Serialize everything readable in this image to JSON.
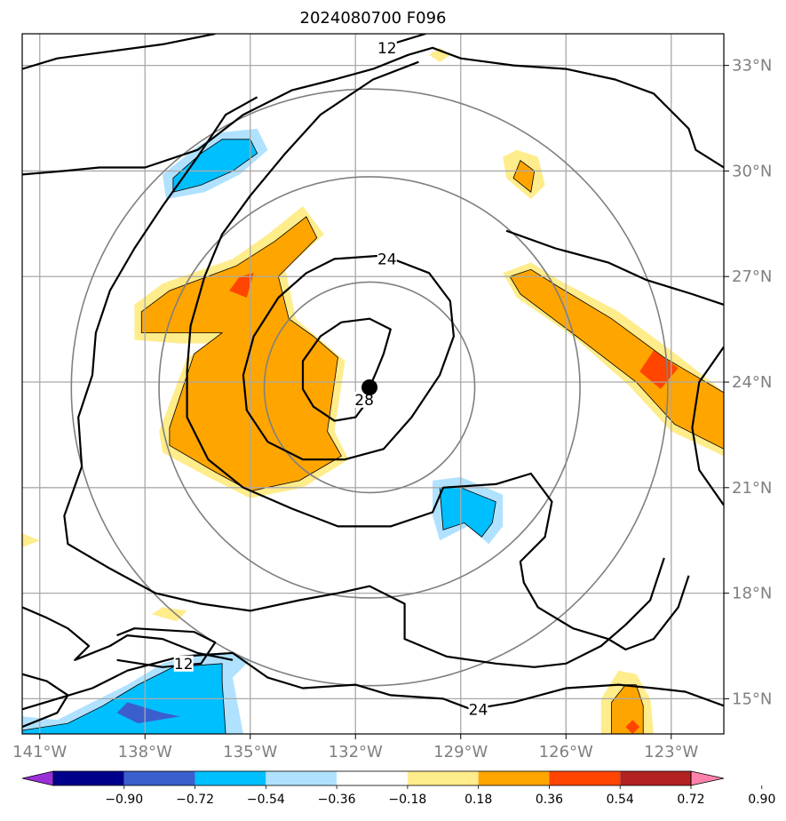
{
  "chart_data": {
    "type": "heatmap",
    "title": "2024080700 F096",
    "xlabel": "",
    "ylabel": "",
    "xlim": [
      -141.5,
      -121.5
    ],
    "ylim": [
      14.0,
      33.9
    ],
    "x_ticks": [
      -141,
      -138,
      -135,
      -132,
      -129,
      -126,
      -123
    ],
    "x_tick_labels": [
      "141°W",
      "138°W",
      "135°W",
      "132°W",
      "129°W",
      "126°W",
      "123°W"
    ],
    "y_ticks": [
      15,
      18,
      21,
      24,
      27,
      30,
      33
    ],
    "y_tick_labels": [
      "15°N",
      "18°N",
      "21°N",
      "24°N",
      "27°N",
      "30°N",
      "33°N"
    ],
    "grid": true,
    "center": {
      "lon": -131.6,
      "lat": 23.85
    },
    "range_rings_deg": [
      3,
      6,
      8.5
    ],
    "contour_labels": [
      {
        "text": "12",
        "lon": -131.1,
        "lat": 33.5
      },
      {
        "text": "24",
        "lon": -131.1,
        "lat": 27.5
      },
      {
        "text": "28",
        "lon": -131.75,
        "lat": 23.5
      },
      {
        "text": "12",
        "lon": -136.9,
        "lat": 16.0
      },
      {
        "text": "24",
        "lon": -128.5,
        "lat": 14.7
      }
    ],
    "colorbar": {
      "colors": [
        "#9b30d9",
        "#00008b",
        "#3a5fcd",
        "#00bfff",
        "#b0e2ff",
        "#ffffff",
        "#ffec8b",
        "#ffa500",
        "#ff4500",
        "#b22222",
        "#ff82ab"
      ],
      "tick_labels": [
        "−0.90",
        "−0.72",
        "−0.54",
        "−0.36",
        "−0.18",
        "0.18",
        "0.36",
        "0.54",
        "0.72",
        "0.90"
      ]
    }
  }
}
